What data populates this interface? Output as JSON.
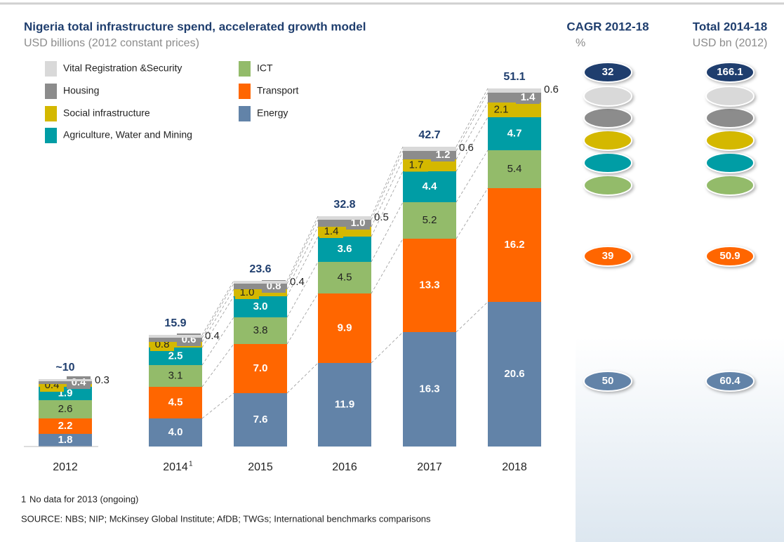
{
  "chart_data": {
    "type": "stacked_bar",
    "title": "Nigeria total  infrastructure spend, accelerated growth model",
    "subtitle": "USD billions (2012 constant prices)",
    "categories": [
      "2012",
      "2014",
      "2015",
      "2016",
      "2017",
      "2018"
    ],
    "ylim": [
      0,
      52
    ],
    "series": [
      {
        "name": "Energy",
        "color": "#6283a8",
        "values": [
          1.8,
          4.0,
          7.6,
          11.9,
          16.3,
          20.6
        ],
        "value_labels": [
          "1.8",
          "4.0",
          "7.6",
          "11.9",
          "16.3",
          "20.6"
        ],
        "cagr": 50,
        "total_2014_18": 60.4
      },
      {
        "name": "Transport",
        "color": "#ff6600",
        "values": [
          2.2,
          4.5,
          7.0,
          9.9,
          13.3,
          16.2
        ],
        "value_labels": [
          "2.2",
          "4.5",
          "7.0",
          "9.9",
          "13.3",
          "16.2"
        ],
        "cagr": 39,
        "total_2014_18": 50.9
      },
      {
        "name": "ICT",
        "color": "#93bb6a",
        "values": [
          2.6,
          3.1,
          3.8,
          4.5,
          5.2,
          5.4
        ]
      },
      {
        "name": "Agriculture, Water and Mining",
        "color": "#009da5",
        "values": [
          1.9,
          2.5,
          3.0,
          3.6,
          4.4,
          4.7
        ],
        "value_labels": [
          "1.9",
          "2.5",
          "3.0",
          "3.6",
          "4.4",
          "4.7"
        ]
      },
      {
        "name": "Social infrastructure",
        "color": "#d4b800",
        "values": [
          0.4,
          0.8,
          1.0,
          1.4,
          1.7,
          2.1
        ],
        "value_labels": [
          "0.4",
          "0.8",
          "1.0",
          "1.4",
          "1.7",
          "2.1"
        ]
      },
      {
        "name": "Housing",
        "color": "#8c8c8c",
        "values": [
          0.4,
          0.6,
          0.8,
          1.0,
          1.2,
          1.4
        ],
        "value_labels": [
          "0.4",
          "0.6",
          "0.8",
          "1.0",
          "1.2",
          "1.4"
        ]
      },
      {
        "name": "Vital Registration &Security",
        "color": "#d9d9d9",
        "values": [
          0.3,
          0.4,
          0.4,
          0.5,
          0.6,
          0.6
        ]
      }
    ],
    "totals": {
      "values": [
        10,
        15.9,
        23.6,
        32.8,
        42.7,
        51.1
      ],
      "value_labels": [
        "~10",
        "15.9",
        "23.6",
        "32.8",
        "42.7",
        "51.1"
      ],
      "color": "#1f3e6e",
      "cagr": 32,
      "total_2014_18": 166.1
    },
    "cagr_header": {
      "title": "CAGR 2012-18",
      "subtitle": "%"
    },
    "total_header": {
      "title": "Total 2014-18",
      "subtitle": "USD bn (2012)"
    },
    "footnote": {
      "mark": "1",
      "text": "No data for 2013 (ongoing)"
    },
    "source": "SOURCE: NBS; NIP; McKinsey Global Institute; AfDB; TWGs; International benchmarks comparisons"
  }
}
